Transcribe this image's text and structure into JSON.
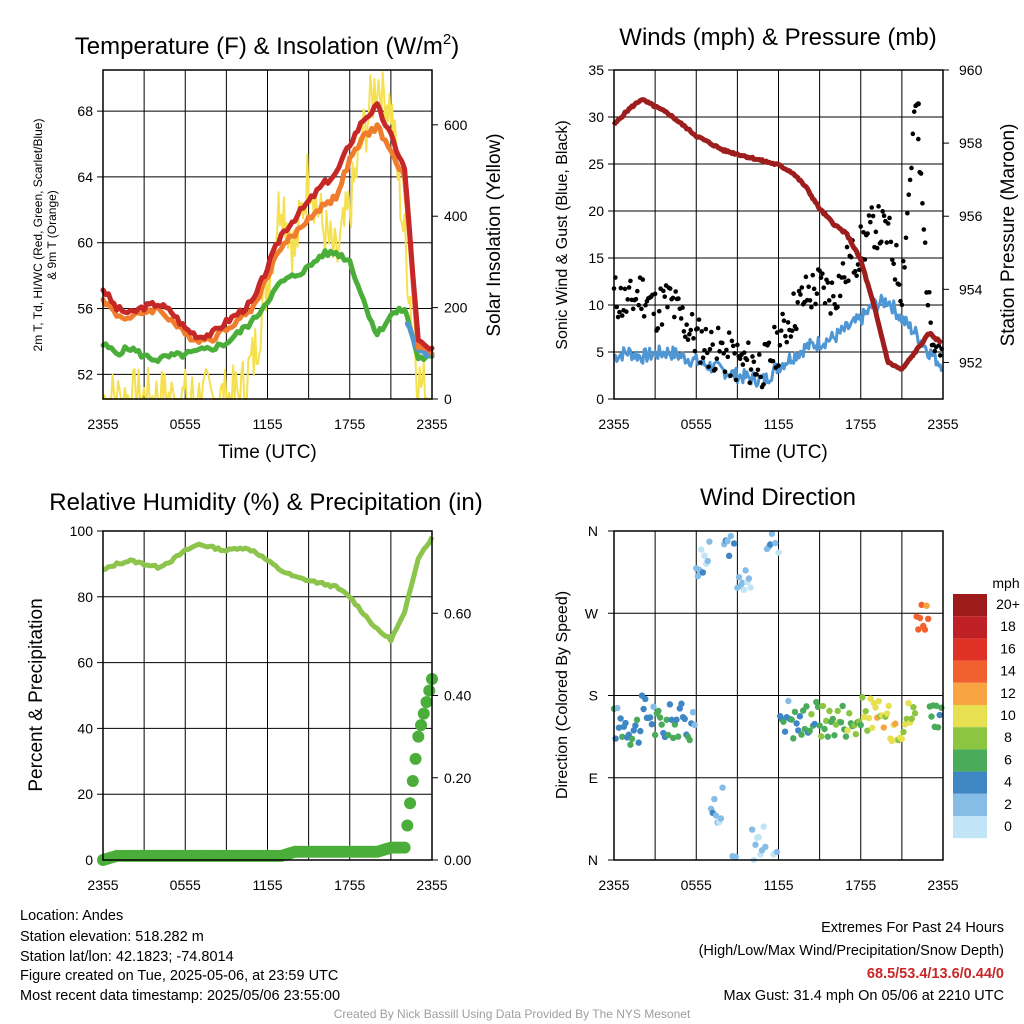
{
  "colors": {
    "red": "#c62828",
    "orange": "#f07d2e",
    "green": "#4cae3a",
    "yellow": "#f5e150",
    "blue": "#4f97d4",
    "black": "#000000",
    "maroon": "#9e1d1d",
    "lightgreen": "#8cc44c"
  },
  "chart_data": [
    {
      "type": "line",
      "title": "Temperature (F) & Insolation (W/m²)",
      "title_main": "Temperature (F) & Insolation (W/m",
      "title_sup": "2",
      "title_end": ")",
      "xlabel": "Time (UTC)",
      "ylabel_line1": "2m T, Td, HI/WC (Red, Green, Scarlet/Blue)",
      "ylabel_line2": "& 9m T (Orange)",
      "y2label": "Solar Insolation (Yellow)",
      "x_ticks": [
        "2355",
        "0555",
        "1155",
        "1755",
        "2355"
      ],
      "ylim": [
        50.5,
        70.5
      ],
      "y_ticks": [
        52,
        56,
        60,
        64,
        68
      ],
      "y2lim": [
        0,
        720
      ],
      "y2_ticks": [
        0,
        200,
        400,
        600
      ],
      "x_hours": [
        0,
        1,
        2,
        3,
        4,
        5,
        6,
        7,
        8,
        9,
        10,
        11,
        12,
        13,
        14,
        15,
        16,
        17,
        18,
        19,
        20,
        21,
        22,
        23,
        24
      ],
      "series": [
        {
          "name": "2m T",
          "color": "red",
          "axis": "left",
          "values": [
            57.2,
            56.0,
            55.7,
            56.1,
            56.3,
            55.8,
            54.8,
            54.3,
            54.5,
            55.2,
            55.8,
            56.5,
            58.5,
            60.5,
            61.5,
            62.5,
            63.5,
            64.2,
            66.0,
            67.5,
            68.3,
            66.5,
            64.5,
            54.0,
            53.4
          ]
        },
        {
          "name": "9m T",
          "color": "orange",
          "axis": "left",
          "values": [
            56.6,
            55.6,
            55.4,
            55.8,
            56.0,
            55.3,
            54.4,
            54.1,
            54.2,
            54.8,
            55.4,
            56.1,
            58.0,
            59.8,
            60.5,
            61.5,
            62.2,
            62.8,
            65.0,
            66.4,
            67.1,
            65.5,
            64.0,
            53.8,
            53.3
          ]
        },
        {
          "name": "Td",
          "color": "green",
          "axis": "left",
          "values": [
            53.8,
            53.3,
            53.6,
            53.1,
            52.9,
            53.1,
            53.2,
            53.4,
            53.6,
            53.9,
            54.6,
            55.3,
            56.5,
            57.6,
            58.0,
            58.5,
            59.3,
            59.4,
            58.9,
            56.5,
            54.4,
            55.6,
            56.0,
            53.0,
            53.0
          ]
        },
        {
          "name": "HI/WC",
          "color": "blue",
          "axis": "left",
          "values": [
            null,
            null,
            null,
            null,
            null,
            null,
            null,
            null,
            null,
            null,
            null,
            null,
            null,
            null,
            null,
            null,
            null,
            null,
            null,
            null,
            null,
            null,
            55.5,
            53.5,
            53.2
          ]
        },
        {
          "name": "Solar Insolation",
          "color": "yellow",
          "axis": "right",
          "values": [
            0,
            0,
            0,
            0,
            0,
            0,
            0,
            0,
            0,
            0,
            10,
            90,
            260,
            450,
            320,
            500,
            380,
            300,
            420,
            580,
            700,
            640,
            350,
            40,
            0
          ]
        }
      ]
    },
    {
      "type": "scatter",
      "title": "Winds (mph) & Pressure (mb)",
      "xlabel": "Time (UTC)",
      "ylabel": "Sonic Wind & Gust (Blue, Black)",
      "y2label": "Station Pressure (Maroon)",
      "x_ticks": [
        "2355",
        "0555",
        "1155",
        "1755",
        "2355"
      ],
      "ylim": [
        0,
        35
      ],
      "y_ticks": [
        0,
        5,
        10,
        15,
        20,
        25,
        30,
        35
      ],
      "y2lim": [
        951.0,
        960.0
      ],
      "y2_ticks": [
        952,
        954,
        956,
        958,
        960
      ],
      "x_hours": [
        0,
        1,
        2,
        3,
        4,
        5,
        6,
        7,
        8,
        9,
        10,
        11,
        12,
        13,
        14,
        15,
        16,
        17,
        18,
        19,
        20,
        21,
        22,
        23,
        24
      ],
      "series": [
        {
          "name": "Sonic Wind",
          "color": "blue",
          "axis": "left",
          "values": [
            4.5,
            5.0,
            4.5,
            4.8,
            5.0,
            4.5,
            4.0,
            3.5,
            3.0,
            2.5,
            2.2,
            2.0,
            3.5,
            4.5,
            5.5,
            6.0,
            6.5,
            7.5,
            8.5,
            10.0,
            10.5,
            8.5,
            7.0,
            5.0,
            3.5
          ]
        },
        {
          "name": "Gust",
          "color": "black",
          "axis": "left",
          "values": [
            11.0,
            10.0,
            11.5,
            9.5,
            10.5,
            8.5,
            6.5,
            5.5,
            5.0,
            4.0,
            3.8,
            3.5,
            6.0,
            9.0,
            11.0,
            12.0,
            11.0,
            14.0,
            16.0,
            18.5,
            17.5,
            12.0,
            31.4,
            9.0,
            5.0
          ]
        },
        {
          "name": "Station Pressure",
          "color": "maroon",
          "axis": "right",
          "values": [
            958.5,
            958.9,
            959.2,
            959.0,
            958.8,
            958.5,
            958.2,
            958.0,
            957.8,
            957.7,
            957.6,
            957.5,
            957.4,
            957.2,
            956.8,
            956.2,
            955.8,
            955.5,
            954.8,
            953.5,
            952.0,
            951.8,
            952.3,
            952.8,
            952.5
          ]
        }
      ]
    },
    {
      "type": "line",
      "title": "Relative Humidity (%) & Precipitation (in)",
      "ylabel": "Percent & Precipitation",
      "x_ticks": [
        "2355",
        "0555",
        "1155",
        "1755",
        "2355"
      ],
      "ylim": [
        0,
        100
      ],
      "y_ticks": [
        0,
        20,
        40,
        60,
        80,
        100
      ],
      "y2lim": [
        0,
        0.8
      ],
      "y2_ticks": [
        "0.00",
        "0.20",
        "0.40",
        "0.60"
      ],
      "x_hours": [
        0,
        1,
        2,
        3,
        4,
        5,
        6,
        7,
        8,
        9,
        10,
        11,
        12,
        13,
        14,
        15,
        16,
        17,
        18,
        19,
        20,
        21,
        22,
        23,
        24
      ],
      "series": [
        {
          "name": "Relative Humidity",
          "color": "lightgreen",
          "axis": "left",
          "values": [
            88,
            90,
            91,
            90,
            89,
            91,
            94,
            96,
            95,
            94,
            95,
            94,
            91,
            88,
            86,
            85,
            84,
            83,
            80,
            75,
            70,
            67,
            75,
            92,
            98
          ]
        },
        {
          "name": "Precipitation",
          "color": "green",
          "axis": "right",
          "values": [
            0.0,
            0.01,
            0.01,
            0.01,
            0.01,
            0.01,
            0.01,
            0.01,
            0.01,
            0.01,
            0.01,
            0.01,
            0.01,
            0.01,
            0.02,
            0.02,
            0.02,
            0.02,
            0.02,
            0.02,
            0.02,
            0.03,
            0.03,
            0.3,
            0.44
          ]
        }
      ]
    },
    {
      "type": "scatter",
      "title": "Wind Direction",
      "ylabel": "Direction (Colored By Speed)",
      "x_ticks": [
        "2355",
        "0555",
        "1155",
        "1755",
        "2355"
      ],
      "y_ticks": [
        "N",
        "E",
        "S",
        "W",
        "N"
      ],
      "ylim": [
        0,
        360
      ],
      "colorbar_title": "mph",
      "colorbar_labels": [
        "20+",
        "18",
        "16",
        "14",
        "12",
        "10",
        "8",
        "6",
        "4",
        "2",
        "0"
      ],
      "colorbar_colors": [
        "#9e1b1b",
        "#be2026",
        "#e03127",
        "#f0612f",
        "#f8a442",
        "#e7e151",
        "#8cc641",
        "#4aac5b",
        "#3f86c4",
        "#86bde6",
        "#c2e4f7"
      ],
      "x_hours": [
        0,
        1,
        2,
        3,
        4,
        5,
        6,
        7,
        8,
        9,
        10,
        11,
        12,
        13,
        14,
        15,
        16,
        17,
        18,
        19,
        20,
        21,
        22,
        23,
        24
      ],
      "direction_deg": [
        150,
        145,
        160,
        148,
        152,
        150,
        330,
        60,
        350,
        300,
        20,
        355,
        160,
        150,
        158,
        152,
        155,
        150,
        160,
        155,
        150,
        158,
        270,
        150,
        140
      ],
      "speed_mph": [
        4,
        5,
        4,
        5,
        5,
        4,
        2,
        2,
        2,
        1,
        1,
        2,
        4,
        5,
        6,
        7,
        7,
        8,
        9,
        10,
        10,
        9,
        14,
        6,
        4
      ]
    }
  ],
  "info": {
    "location": "Location: Andes",
    "elevation": "Station elevation: 518.282 m",
    "latlon": "Station lat/lon: 42.1823; -74.8014",
    "created": "Figure created on Tue, 2025-05-06, at 23:59 UTC",
    "recent": "Most recent data timestamp: 2025/05/06 23:55:00"
  },
  "extremes": {
    "title": "Extremes For Past 24 Hours",
    "subtitle": "(High/Low/Max Wind/Precipitation/Snow Depth)",
    "values": "68.5/53.4/13.6/0.44/0",
    "gust": "Max Gust: 31.4 mph On 05/06 at 2210 UTC"
  },
  "credit": "Created By Nick Bassill Using Data Provided By The NYS Mesonet"
}
